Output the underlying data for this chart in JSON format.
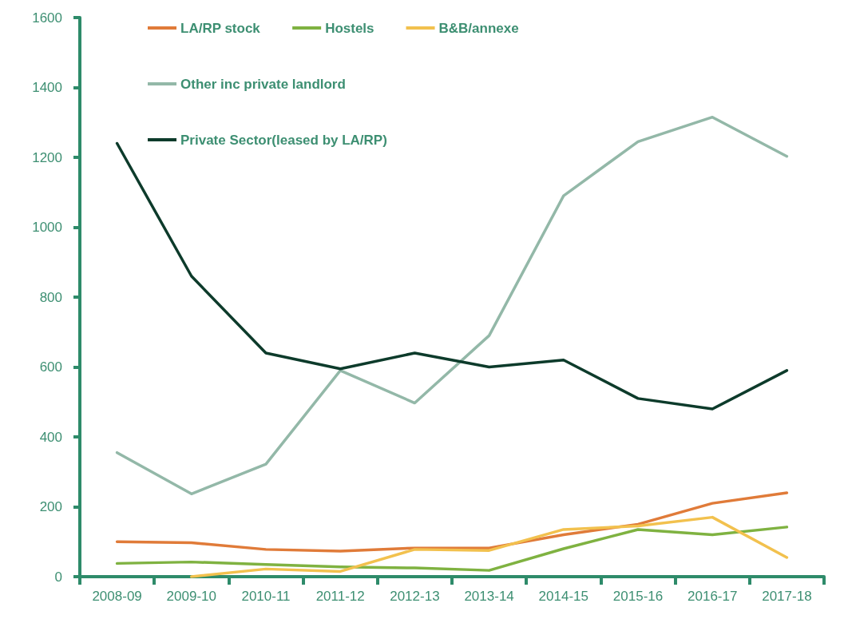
{
  "chart_data": {
    "type": "line",
    "categories": [
      "2008-09",
      "2009-10",
      "2010-11",
      "2011-12",
      "2012-13",
      "2013-14",
      "2014-15",
      "2015-16",
      "2016-17",
      "2017-18"
    ],
    "series": [
      {
        "name": "LA/RP stock",
        "color": "#e07b39",
        "values": [
          100,
          97,
          78,
          73,
          82,
          82,
          120,
          150,
          210,
          240
        ]
      },
      {
        "name": "Hostels",
        "color": "#7fb241",
        "values": [
          38,
          42,
          35,
          28,
          25,
          18,
          80,
          135,
          120,
          142
        ]
      },
      {
        "name": "B&B/annexe",
        "color": "#f2c14e",
        "values": [
          null,
          0,
          22,
          15,
          78,
          75,
          135,
          145,
          170,
          55
        ]
      },
      {
        "name": "Other inc private landlord",
        "color": "#93b8a8",
        "values": [
          355,
          237,
          322,
          590,
          497,
          690,
          1090,
          1245,
          1315,
          1203
        ]
      },
      {
        "name": "Private Sector(leased by LA/RP)",
        "color": "#0d3b2b",
        "values": [
          1240,
          860,
          640,
          595,
          640,
          600,
          620,
          510,
          480,
          590
        ]
      }
    ],
    "ylim": [
      0,
      1600
    ],
    "yticks": [
      0,
      200,
      400,
      600,
      800,
      1000,
      1200,
      1400,
      1600
    ],
    "grid": false,
    "legend": "top left",
    "marker": "none",
    "line_style": "solid"
  }
}
